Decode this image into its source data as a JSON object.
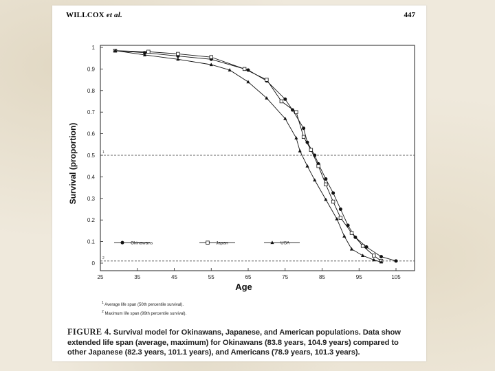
{
  "header": {
    "author": "WILLCOX",
    "author_suffix": "et al.",
    "page_number": "447"
  },
  "caption": {
    "figure_label": "FIGURE 4.",
    "text": "Survival model for Okinawans, Japanese, and American populations. Data show extended life span (average, maximum) for Okinawans (83.8 years, 104.9 years) compared to other Japanese (82.3 years, 101.1 years), and Americans (78.9 years, 101.3 years)."
  },
  "footnotes": [
    {
      "mark": "1",
      "text": "Average life span (50th percentile survival)."
    },
    {
      "mark": "2",
      "text": "Maximum life span (99th percentile survival)."
    }
  ],
  "chart_data": {
    "type": "line",
    "xlabel": "Age",
    "ylabel": "Survival (proportion)",
    "xlim": [
      25,
      110
    ],
    "ylim": [
      0,
      1
    ],
    "x_ticks": [
      25,
      35,
      45,
      55,
      65,
      75,
      85,
      95,
      105
    ],
    "y_ticks": [
      0,
      0.1,
      0.2,
      0.3,
      0.4,
      0.5,
      0.6,
      0.7,
      0.8,
      0.9,
      1
    ],
    "reference_lines": [
      {
        "y": 0.5,
        "style": "dashed",
        "mark": "1"
      },
      {
        "y": 0.01,
        "style": "dashed",
        "mark": "2"
      }
    ],
    "legend_position": "bottom-left",
    "series": [
      {
        "name": "Okinawans",
        "marker": "filled-circle",
        "x": [
          29,
          37,
          46,
          55,
          65,
          70,
          75,
          77,
          80,
          81,
          83,
          84,
          86,
          88,
          90,
          92,
          94,
          97,
          101,
          105
        ],
        "y": [
          0.985,
          0.975,
          0.96,
          0.945,
          0.895,
          0.845,
          0.76,
          0.71,
          0.625,
          0.56,
          0.5,
          0.46,
          0.39,
          0.325,
          0.25,
          0.175,
          0.12,
          0.075,
          0.03,
          0.01
        ]
      },
      {
        "name": "Japan",
        "marker": "open-square",
        "x": [
          29,
          38,
          46,
          55,
          64,
          70,
          74,
          78,
          80,
          82,
          84,
          86,
          88,
          90,
          93,
          96,
          99,
          101
        ],
        "y": [
          0.985,
          0.98,
          0.97,
          0.955,
          0.9,
          0.85,
          0.75,
          0.7,
          0.585,
          0.525,
          0.45,
          0.365,
          0.285,
          0.21,
          0.14,
          0.08,
          0.035,
          0.01
        ]
      },
      {
        "name": "USA",
        "marker": "filled-triangle",
        "x": [
          29,
          37,
          46,
          55,
          60,
          65,
          70,
          75,
          78,
          79,
          81,
          83,
          86,
          89,
          91,
          93,
          96,
          99,
          101
        ],
        "y": [
          0.985,
          0.965,
          0.945,
          0.92,
          0.895,
          0.84,
          0.765,
          0.67,
          0.58,
          0.52,
          0.45,
          0.385,
          0.295,
          0.205,
          0.125,
          0.065,
          0.035,
          0.015,
          0.005
        ]
      }
    ]
  }
}
